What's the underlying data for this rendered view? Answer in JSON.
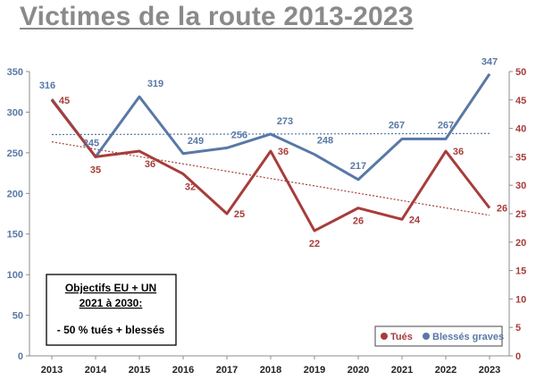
{
  "title": "Victimes de la route 2013-2023",
  "chart_data": {
    "type": "line",
    "x": [
      "2013",
      "2014",
      "2015",
      "2016",
      "2017",
      "2018",
      "2019",
      "2020",
      "2021",
      "2022",
      "2023"
    ],
    "series": [
      {
        "name": "Blessés graves",
        "axis": "left",
        "color": "#5978a6",
        "values": [
          316,
          245,
          319,
          249,
          256,
          273,
          248,
          217,
          267,
          267,
          347
        ]
      },
      {
        "name": "Tués",
        "axis": "right",
        "color": "#a63d3b",
        "values": [
          45,
          35,
          36,
          32,
          25,
          36,
          22,
          26,
          24,
          36,
          26
        ]
      }
    ],
    "y_left": {
      "range": [
        0,
        350
      ],
      "ticks": [
        "0",
        "50",
        "100",
        "150",
        "200",
        "250",
        "300",
        "350"
      ],
      "color": "#5978a6"
    },
    "y_right": {
      "range": [
        0,
        50
      ],
      "ticks": [
        "0",
        "5",
        "10",
        "15",
        "20",
        "25",
        "30",
        "35",
        "40",
        "45",
        "50"
      ],
      "color": "#a63d3b"
    },
    "trendlines": true,
    "grid": false,
    "legend": {
      "placement": "bottom-right",
      "entries": [
        "Tués",
        "Blessés graves"
      ]
    },
    "annotation": {
      "lines": [
        "Objectifs EU + UN",
        "2021 à 2030:",
        "- 50 % tués + blessés"
      ]
    }
  }
}
